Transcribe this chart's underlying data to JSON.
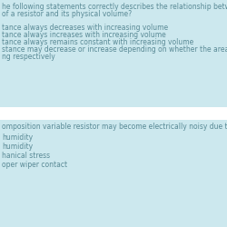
{
  "bg_color": "#cce8ee",
  "separator_color": "#ffffff",
  "text_color": "#5a8a96",
  "title_text_1": "he following statements correctly describes the relationship between the",
  "title_text_2": "of a resistor and its physical volume?",
  "options_top": [
    "tance always decreases with increasing volume",
    "tance always increases with increasing volume",
    "tance always remains constant with increasing volume",
    "stance may decrease or increase depending on whether the area or lengt",
    "ng respectively"
  ],
  "title2_text": "omposition variable resistor may become electrically noisy due to:",
  "options_bottom": [
    "humidity",
    "humidity",
    "hanical stress",
    "oper wiper contact"
  ],
  "fontsize": 5.5,
  "fig_width": 2.5,
  "fig_height": 2.5,
  "dpi": 100
}
